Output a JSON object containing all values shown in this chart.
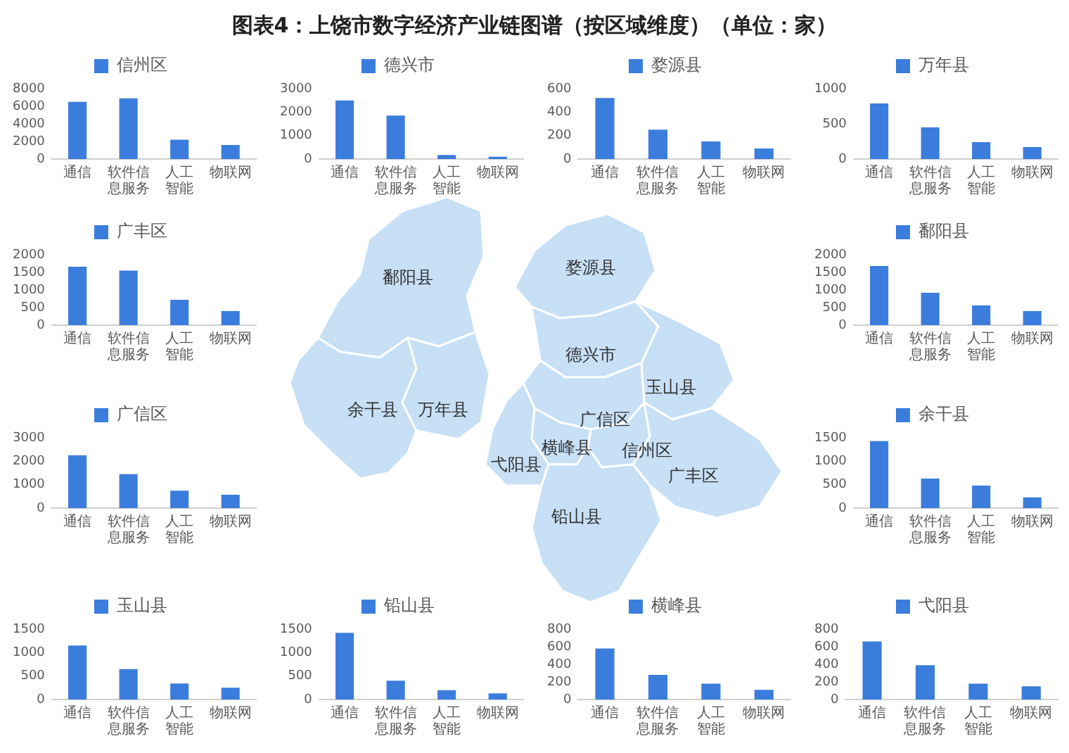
{
  "chart_data": [
    {
      "type": "other",
      "title": "图表4：上饶市数字经济产业链图谱（按区域维度）（单位：家）",
      "annotations": [
        "婺源县",
        "鄱阳县",
        "德兴市",
        "玉山县",
        "余干县",
        "万年县",
        "广信区",
        "横峰县",
        "信州区",
        "弋阳县",
        "广丰区",
        "铅山县"
      ]
    },
    {
      "type": "bar",
      "categories": [
        "通信",
        "软件信息服务",
        "人工智能",
        "物联网"
      ],
      "series": [
        {
          "name": "信州区",
          "color": "#3b7ddd",
          "values": [
            6500,
            6900,
            2200,
            1600
          ]
        }
      ],
      "ylim": [
        0,
        8000
      ],
      "yticks": [
        0,
        2000,
        4000,
        6000,
        8000
      ],
      "legend": "top"
    },
    {
      "type": "bar",
      "categories": [
        "通信",
        "软件信息服务",
        "人工智能",
        "物联网"
      ],
      "series": [
        {
          "name": "德兴市",
          "color": "#3b7ddd",
          "values": [
            2500,
            1850,
            170,
            100
          ]
        }
      ],
      "ylim": [
        0,
        3000
      ],
      "yticks": [
        0,
        1000,
        2000,
        3000
      ],
      "legend": "top"
    },
    {
      "type": "bar",
      "categories": [
        "通信",
        "软件信息服务",
        "人工智能",
        "物联网"
      ],
      "series": [
        {
          "name": "婺源县",
          "color": "#3b7ddd",
          "values": [
            520,
            250,
            150,
            90
          ]
        }
      ],
      "ylim": [
        0,
        600
      ],
      "yticks": [
        0,
        200,
        400,
        600
      ],
      "legend": "top"
    },
    {
      "type": "bar",
      "categories": [
        "通信",
        "软件信息服务",
        "人工智能",
        "物联网"
      ],
      "series": [
        {
          "name": "万年县",
          "color": "#3b7ddd",
          "values": [
            790,
            450,
            240,
            170
          ]
        }
      ],
      "ylim": [
        0,
        1000
      ],
      "yticks": [
        0,
        500,
        1000
      ],
      "legend": "top"
    },
    {
      "type": "bar",
      "categories": [
        "通信",
        "软件信息服务",
        "人工智能",
        "物联网"
      ],
      "series": [
        {
          "name": "广丰区",
          "color": "#3b7ddd",
          "values": [
            1660,
            1550,
            720,
            400
          ]
        }
      ],
      "ylim": [
        0,
        2000
      ],
      "yticks": [
        0,
        500,
        1000,
        1500,
        2000
      ],
      "legend": "top"
    },
    {
      "type": "bar",
      "categories": [
        "通信",
        "软件信息服务",
        "人工智能",
        "物联网"
      ],
      "series": [
        {
          "name": "鄱阳县",
          "color": "#3b7ddd",
          "values": [
            1680,
            920,
            560,
            400
          ]
        }
      ],
      "ylim": [
        0,
        2000
      ],
      "yticks": [
        0,
        500,
        1000,
        1500,
        2000
      ],
      "legend": "top"
    },
    {
      "type": "bar",
      "categories": [
        "通信",
        "软件信息服务",
        "人工智能",
        "物联网"
      ],
      "series": [
        {
          "name": "广信区",
          "color": "#3b7ddd",
          "values": [
            2250,
            1450,
            740,
            570
          ]
        }
      ],
      "ylim": [
        0,
        3000
      ],
      "yticks": [
        0,
        1000,
        2000,
        3000
      ],
      "legend": "top"
    },
    {
      "type": "bar",
      "categories": [
        "通信",
        "软件信息服务",
        "人工智能",
        "物联网"
      ],
      "series": [
        {
          "name": "余干县",
          "color": "#3b7ddd",
          "values": [
            1430,
            630,
            480,
            230
          ]
        }
      ],
      "ylim": [
        0,
        1500
      ],
      "yticks": [
        0,
        500,
        1000,
        1500
      ],
      "legend": "top"
    },
    {
      "type": "bar",
      "categories": [
        "通信",
        "软件信息服务",
        "人工智能",
        "物联网"
      ],
      "series": [
        {
          "name": "玉山县",
          "color": "#3b7ddd",
          "values": [
            1150,
            650,
            340,
            250
          ]
        }
      ],
      "ylim": [
        0,
        1500
      ],
      "yticks": [
        0,
        500,
        1000,
        1500
      ],
      "legend": "top"
    },
    {
      "type": "bar",
      "categories": [
        "通信",
        "软件信息服务",
        "人工智能",
        "物联网"
      ],
      "series": [
        {
          "name": "铅山县",
          "color": "#3b7ddd",
          "values": [
            1420,
            400,
            200,
            130
          ]
        }
      ],
      "ylim": [
        0,
        1500
      ],
      "yticks": [
        0,
        500,
        1000,
        1500
      ],
      "legend": "top"
    },
    {
      "type": "bar",
      "categories": [
        "通信",
        "软件信息服务",
        "人工智能",
        "物联网"
      ],
      "series": [
        {
          "name": "横峰县",
          "color": "#3b7ddd",
          "values": [
            580,
            280,
            180,
            110
          ]
        }
      ],
      "ylim": [
        0,
        800
      ],
      "yticks": [
        0,
        200,
        400,
        600,
        800
      ],
      "legend": "top"
    },
    {
      "type": "bar",
      "categories": [
        "通信",
        "软件信息服务",
        "人工智能",
        "物联网"
      ],
      "series": [
        {
          "name": "弋阳县",
          "color": "#3b7ddd",
          "values": [
            660,
            390,
            180,
            150
          ]
        }
      ],
      "ylim": [
        0,
        800
      ],
      "yticks": [
        0,
        200,
        400,
        600,
        800
      ],
      "legend": "top"
    }
  ]
}
